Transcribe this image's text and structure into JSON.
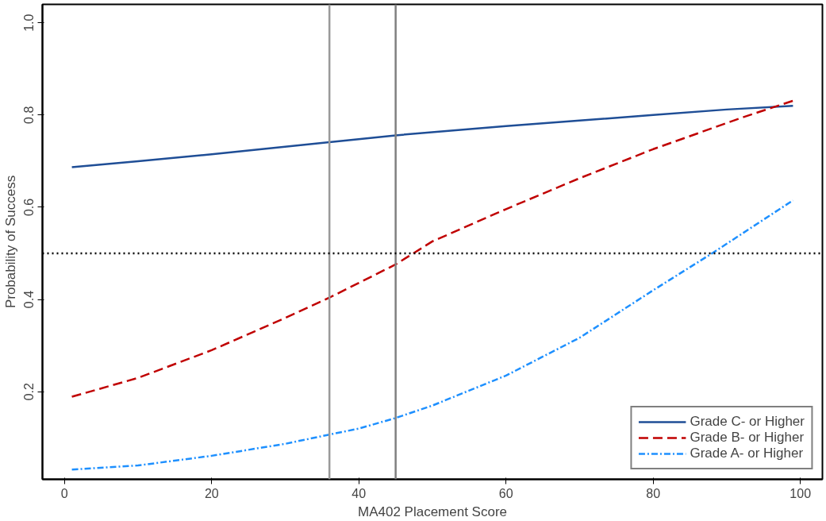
{
  "chart_data": {
    "type": "line",
    "xlabel": "MA402 Placement Score",
    "ylabel": "Probability of Success",
    "xlim": [
      -3,
      103
    ],
    "ylim": [
      0.01,
      1.04
    ],
    "xticks": [
      0,
      20,
      40,
      60,
      80,
      100
    ],
    "yticks": [
      0.2,
      0.4,
      0.6,
      0.8,
      {
        "value": 1,
        "label": "1.0"
      }
    ],
    "grid": false,
    "legend": "bottom right",
    "series": [
      {
        "name": "Grade C- or Higher",
        "color": "#1f4e96",
        "line_style": "solid",
        "x": [
          1,
          10,
          20,
          36,
          45,
          60,
          70,
          80,
          90,
          99
        ],
        "values": [
          0.687,
          0.7,
          0.715,
          0.741,
          0.756,
          0.776,
          0.788,
          0.8,
          0.812,
          0.82
        ]
      },
      {
        "name": "Grade B- or Higher",
        "color": "#c00000",
        "line_style": "dashed",
        "x": [
          1,
          10,
          20,
          30,
          36,
          45,
          50,
          60,
          70,
          80,
          92,
          99
        ],
        "values": [
          0.189,
          0.23,
          0.29,
          0.36,
          0.404,
          0.476,
          0.526,
          0.596,
          0.663,
          0.726,
          0.794,
          0.831
        ]
      },
      {
        "name": "Grade A- or Higher",
        "color": "#1e90ff",
        "line_style": "dotdash",
        "x": [
          1,
          10,
          20,
          30,
          36,
          40,
          45,
          50,
          60,
          70,
          80,
          88,
          99
        ],
        "values": [
          0.031,
          0.04,
          0.061,
          0.087,
          0.107,
          0.12,
          0.143,
          0.17,
          0.235,
          0.317,
          0.42,
          0.5,
          0.615
        ]
      }
    ],
    "ref_lines": [
      {
        "axis": "x",
        "value": 36,
        "color": "#999999",
        "line_style": "solid"
      },
      {
        "axis": "x",
        "value": 45,
        "color": "#808080",
        "line_style": "solid"
      },
      {
        "axis": "y",
        "value": 0.5,
        "color": "#000000",
        "line_style": "dotted"
      }
    ]
  }
}
